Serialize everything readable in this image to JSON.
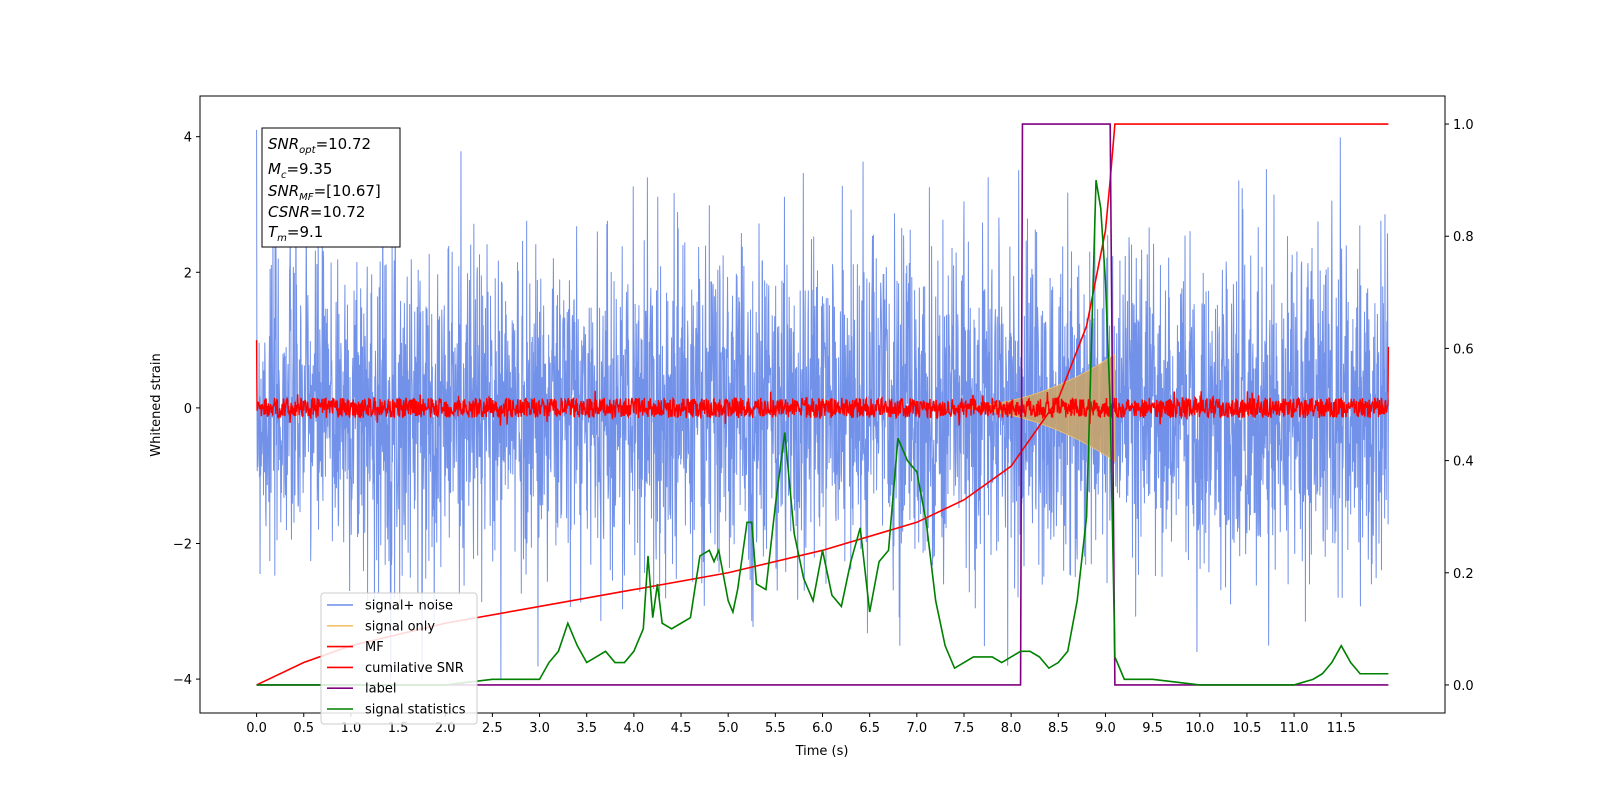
{
  "chart_data": {
    "type": "line",
    "xlabel": "Time (s)",
    "ylabel": "Whitened strain",
    "xlim": [
      -0.6,
      12.6
    ],
    "ylim": [
      -4.5,
      4.6
    ],
    "y2lim": [
      -0.05,
      1.05
    ],
    "x_ticks": [
      "0.0",
      "0.5",
      "1.0",
      "1.5",
      "2.0",
      "2.5",
      "3.0",
      "3.5",
      "4.0",
      "4.5",
      "5.0",
      "5.5",
      "6.0",
      "6.5",
      "7.0",
      "7.5",
      "8.0",
      "8.5",
      "9.0",
      "9.5",
      "10.0",
      "10.5",
      "11.0",
      "11.5"
    ],
    "y_ticks": [
      "4",
      "2",
      "0",
      "−2",
      "−4"
    ],
    "y2_ticks": [
      "1.0",
      "0.8",
      "0.6",
      "0.4",
      "0.2",
      "0.0"
    ],
    "legend_position": "lower left",
    "colors": {
      "signal_noise": "#6a8be8",
      "signal_only": "#f5c26b",
      "signal_fill": "#c8a46a",
      "mf": "#ff0000",
      "cumulative_snr": "#ff0000",
      "label": "#800080",
      "signal_statistics": "#008000"
    },
    "annotation": {
      "snr_opt_base": "SNR",
      "snr_opt_sub": "opt",
      "snr_opt_val": "=10.72",
      "mc_base": "M",
      "mc_sub": "c",
      "mc_val": "=9.35",
      "snr_mf_base": "SNR",
      "snr_mf_sub": "MF",
      "snr_mf_val": "=[10.67]",
      "csnr_base": "CSNR",
      "csnr_val": "=10.72",
      "tm_base": "T",
      "tm_sub": "m",
      "tm_val": "=9.1"
    },
    "series": [
      {
        "name": "signal+ noise",
        "axis": "left",
        "envelope": {
          "x": [
            0.0,
            12.0
          ],
          "typical_amplitude": 1.2,
          "max_peak": 4.1,
          "min_peak": -4.0
        }
      },
      {
        "name": "signal only",
        "axis": "left",
        "chirp": {
          "start_x": 7.3,
          "end_x": 9.1,
          "end_amplitude": 0.75
        }
      },
      {
        "name": "MF",
        "axis": "left",
        "x": [
          0.0,
          12.0
        ],
        "noise_amplitude": 0.15,
        "start_value": 1.0,
        "end_value": 0.9
      },
      {
        "name": "cumilative SNR",
        "axis": "right",
        "x": [
          0.0,
          0.5,
          1.0,
          2.0,
          3.0,
          4.0,
          5.0,
          6.0,
          7.0,
          7.5,
          8.0,
          8.5,
          8.8,
          9.0,
          9.05,
          9.1,
          12.0
        ],
        "values": [
          0.0,
          0.04,
          0.07,
          0.11,
          0.14,
          0.17,
          0.2,
          0.24,
          0.29,
          0.33,
          0.39,
          0.51,
          0.64,
          0.81,
          0.9,
          1.0,
          1.0
        ]
      },
      {
        "name": "label",
        "axis": "right",
        "x": [
          0.0,
          8.1,
          8.12,
          9.05,
          9.1,
          12.0
        ],
        "values": [
          0.0,
          0.0,
          1.0,
          1.0,
          0.0,
          0.0
        ]
      },
      {
        "name": "signal statistics",
        "axis": "right",
        "x": [
          0.0,
          0.5,
          1.0,
          1.5,
          2.0,
          2.5,
          2.8,
          3.0,
          3.1,
          3.2,
          3.3,
          3.4,
          3.5,
          3.6,
          3.7,
          3.8,
          3.9,
          4.0,
          4.1,
          4.15,
          4.2,
          4.25,
          4.3,
          4.4,
          4.5,
          4.6,
          4.7,
          4.8,
          4.85,
          4.9,
          5.0,
          5.05,
          5.1,
          5.2,
          5.25,
          5.3,
          5.4,
          5.5,
          5.6,
          5.7,
          5.8,
          5.9,
          6.0,
          6.1,
          6.2,
          6.3,
          6.4,
          6.5,
          6.6,
          6.7,
          6.8,
          6.9,
          7.0,
          7.1,
          7.2,
          7.3,
          7.4,
          7.5,
          7.6,
          7.7,
          7.8,
          7.9,
          8.0,
          8.1,
          8.2,
          8.3,
          8.4,
          8.5,
          8.6,
          8.7,
          8.8,
          8.85,
          8.9,
          8.95,
          9.0,
          9.05,
          9.1,
          9.2,
          9.5,
          10.0,
          10.5,
          11.0,
          11.2,
          11.3,
          11.4,
          11.5,
          11.6,
          11.7,
          11.8,
          11.9,
          12.0
        ],
        "values": [
          0.0,
          0.0,
          0.0,
          0.0,
          0.0,
          0.01,
          0.01,
          0.01,
          0.04,
          0.06,
          0.11,
          0.07,
          0.04,
          0.05,
          0.06,
          0.04,
          0.04,
          0.06,
          0.1,
          0.23,
          0.12,
          0.18,
          0.11,
          0.1,
          0.11,
          0.12,
          0.23,
          0.24,
          0.22,
          0.24,
          0.15,
          0.13,
          0.17,
          0.29,
          0.29,
          0.18,
          0.17,
          0.32,
          0.45,
          0.27,
          0.19,
          0.15,
          0.24,
          0.16,
          0.14,
          0.22,
          0.28,
          0.13,
          0.22,
          0.24,
          0.44,
          0.4,
          0.38,
          0.29,
          0.15,
          0.07,
          0.03,
          0.04,
          0.05,
          0.05,
          0.05,
          0.04,
          0.05,
          0.06,
          0.06,
          0.05,
          0.03,
          0.04,
          0.06,
          0.15,
          0.3,
          0.6,
          0.9,
          0.85,
          0.72,
          0.5,
          0.05,
          0.01,
          0.01,
          0.0,
          0.0,
          0.0,
          0.01,
          0.02,
          0.04,
          0.07,
          0.04,
          0.02,
          0.02,
          0.02,
          0.02
        ]
      }
    ]
  }
}
